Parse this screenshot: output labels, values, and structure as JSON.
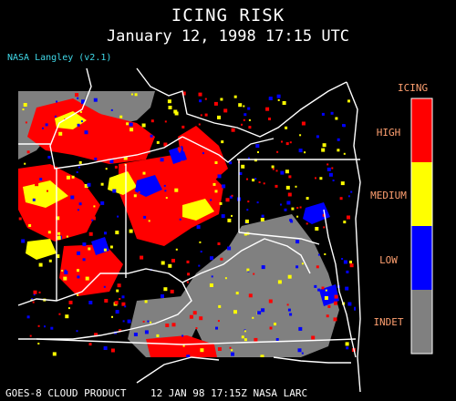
{
  "header": {
    "title": "ICING RISK",
    "datetime": "January 12, 1998 17:15 UTC",
    "credit": "NASA Langley (v2.1)"
  },
  "legend": {
    "title": "ICING",
    "entries": [
      {
        "label": "HIGH",
        "color": "#ff0000"
      },
      {
        "label": "MEDIUM",
        "color": "#ffff00"
      },
      {
        "label": "LOW",
        "color": "#0000ff"
      },
      {
        "label": "INDET",
        "color": "#808080"
      }
    ]
  },
  "footer": {
    "text": "GOES-8 CLOUD PRODUCT    12 JAN 98 17:15Z NASA LARC"
  },
  "map": {
    "background_color": "#000000",
    "region_color": "#808080",
    "boundary_color": "#ffffff"
  }
}
